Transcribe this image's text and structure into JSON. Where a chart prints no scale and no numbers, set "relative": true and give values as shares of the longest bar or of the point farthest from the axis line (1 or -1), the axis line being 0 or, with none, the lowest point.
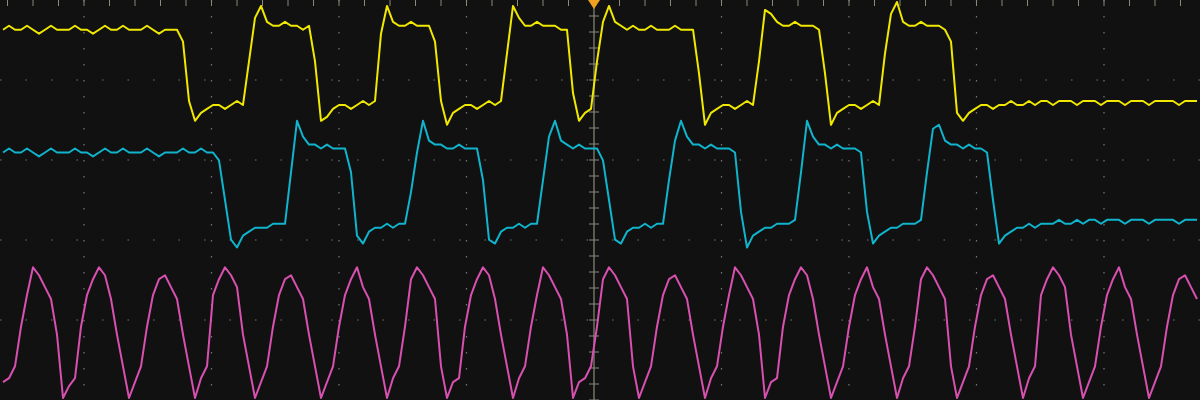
{
  "chart_data": {
    "type": "line",
    "relative": true,
    "grid": true,
    "tick_labels": false,
    "categories": [
      null,
      null,
      null,
      null,
      null,
      null,
      null,
      null,
      null,
      null,
      null,
      null,
      null,
      null,
      null,
      null,
      null,
      null,
      null,
      null,
      null,
      null,
      null,
      null,
      null,
      null,
      null,
      null,
      null,
      null,
      null,
      null,
      null,
      null,
      null,
      null,
      null,
      null,
      null,
      null,
      null,
      null,
      null,
      null,
      null,
      null,
      null,
      null,
      null,
      null,
      null,
      null,
      null,
      null,
      null,
      null,
      null,
      null,
      null,
      null,
      null,
      null,
      null,
      null,
      null,
      null,
      null,
      null,
      null,
      null,
      null,
      null,
      null,
      null,
      null,
      null,
      null,
      null,
      null,
      null,
      null,
      null,
      null,
      null,
      null,
      null,
      null,
      null,
      null,
      null,
      null,
      null,
      null,
      null,
      null,
      null,
      null,
      null,
      null,
      null,
      null,
      null,
      null,
      null,
      null,
      null,
      null,
      null,
      null,
      null,
      null,
      null,
      null,
      null,
      null,
      null,
      null,
      null,
      null,
      null,
      null,
      null,
      null,
      null,
      null,
      null,
      null,
      null,
      null,
      null,
      null,
      null,
      null,
      null,
      null,
      null,
      null,
      null,
      null,
      null,
      null,
      null,
      null,
      null,
      null,
      null,
      null,
      null,
      null,
      null,
      null,
      null,
      null,
      null,
      null,
      null,
      null,
      null,
      null,
      null,
      null,
      null,
      null,
      null,
      null,
      null,
      null,
      null,
      null,
      null,
      null,
      null,
      null,
      null,
      null,
      null,
      null,
      null,
      null,
      null,
      null,
      null,
      null,
      null,
      null,
      null,
      null,
      null,
      null,
      null,
      null,
      null,
      null,
      null,
      null,
      null,
      null,
      null,
      null,
      null
    ],
    "series": [
      {
        "color": "#f0e800",
        "values": [
          0.93,
          0.94,
          0.93,
          0.93,
          0.94,
          0.93,
          0.92,
          0.93,
          0.94,
          0.93,
          0.93,
          0.93,
          0.94,
          0.93,
          0.93,
          0.92,
          0.93,
          0.94,
          0.93,
          0.93,
          0.94,
          0.93,
          0.93,
          0.93,
          0.94,
          0.93,
          0.92,
          0.93,
          0.93,
          0.93,
          0.9,
          0.75,
          0.7,
          0.72,
          0.73,
          0.74,
          0.74,
          0.73,
          0.74,
          0.75,
          0.74,
          0.85,
          0.96,
          0.99,
          0.95,
          0.94,
          0.94,
          0.95,
          0.94,
          0.94,
          0.93,
          0.94,
          0.85,
          0.7,
          0.71,
          0.73,
          0.74,
          0.74,
          0.73,
          0.74,
          0.75,
          0.74,
          0.75,
          0.92,
          0.99,
          0.95,
          0.94,
          0.94,
          0.95,
          0.94,
          0.94,
          0.94,
          0.9,
          0.75,
          0.69,
          0.72,
          0.73,
          0.74,
          0.74,
          0.73,
          0.74,
          0.75,
          0.74,
          0.75,
          0.87,
          0.99,
          0.96,
          0.94,
          0.94,
          0.95,
          0.94,
          0.94,
          0.94,
          0.93,
          0.93,
          0.77,
          0.7,
          0.72,
          0.73,
          0.85,
          0.95,
          0.99,
          0.95,
          0.94,
          0.93,
          0.94,
          0.93,
          0.93,
          0.94,
          0.93,
          0.93,
          0.93,
          0.94,
          0.93,
          0.93,
          0.93,
          0.82,
          0.69,
          0.72,
          0.73,
          0.74,
          0.74,
          0.73,
          0.74,
          0.75,
          0.74,
          0.85,
          0.98,
          0.97,
          0.95,
          0.94,
          0.94,
          0.95,
          0.94,
          0.94,
          0.94,
          0.93,
          0.82,
          0.69,
          0.72,
          0.73,
          0.74,
          0.74,
          0.73,
          0.74,
          0.75,
          0.74,
          0.87,
          0.97,
          1.0,
          0.95,
          0.94,
          0.94,
          0.95,
          0.94,
          0.94,
          0.94,
          0.93,
          0.9,
          0.72,
          0.7,
          0.72,
          0.73,
          0.74,
          0.74,
          0.73,
          0.74,
          0.74,
          0.75,
          0.74,
          0.74,
          0.75,
          0.74,
          0.75,
          0.75,
          0.74,
          0.75,
          0.75,
          0.75,
          0.74,
          0.75,
          0.75,
          0.75,
          0.74,
          0.75,
          0.75,
          0.75,
          0.74,
          0.75,
          0.75,
          0.75,
          0.74,
          0.75,
          0.75,
          0.75,
          0.75,
          0.74,
          0.75,
          0.75,
          0.75
        ]
      },
      {
        "color": "#10b4cc",
        "values": [
          0.62,
          0.63,
          0.62,
          0.62,
          0.63,
          0.62,
          0.61,
          0.62,
          0.63,
          0.62,
          0.62,
          0.62,
          0.63,
          0.62,
          0.62,
          0.61,
          0.62,
          0.63,
          0.62,
          0.62,
          0.63,
          0.62,
          0.62,
          0.62,
          0.63,
          0.62,
          0.61,
          0.62,
          0.62,
          0.62,
          0.63,
          0.62,
          0.62,
          0.63,
          0.62,
          0.62,
          0.6,
          0.5,
          0.4,
          0.38,
          0.41,
          0.42,
          0.43,
          0.43,
          0.43,
          0.44,
          0.44,
          0.44,
          0.57,
          0.7,
          0.66,
          0.64,
          0.64,
          0.63,
          0.64,
          0.63,
          0.63,
          0.63,
          0.57,
          0.41,
          0.39,
          0.42,
          0.43,
          0.43,
          0.44,
          0.43,
          0.44,
          0.44,
          0.52,
          0.62,
          0.7,
          0.65,
          0.64,
          0.64,
          0.63,
          0.63,
          0.64,
          0.63,
          0.63,
          0.63,
          0.55,
          0.4,
          0.39,
          0.42,
          0.43,
          0.43,
          0.44,
          0.43,
          0.44,
          0.44,
          0.55,
          0.66,
          0.7,
          0.65,
          0.64,
          0.63,
          0.64,
          0.63,
          0.63,
          0.63,
          0.6,
          0.5,
          0.4,
          0.39,
          0.42,
          0.43,
          0.43,
          0.44,
          0.43,
          0.44,
          0.44,
          0.55,
          0.65,
          0.7,
          0.66,
          0.64,
          0.64,
          0.63,
          0.64,
          0.63,
          0.63,
          0.63,
          0.62,
          0.47,
          0.38,
          0.41,
          0.42,
          0.43,
          0.43,
          0.44,
          0.44,
          0.44,
          0.45,
          0.57,
          0.7,
          0.66,
          0.64,
          0.64,
          0.63,
          0.64,
          0.63,
          0.63,
          0.63,
          0.62,
          0.47,
          0.39,
          0.41,
          0.42,
          0.43,
          0.43,
          0.44,
          0.44,
          0.44,
          0.45,
          0.57,
          0.68,
          0.69,
          0.65,
          0.64,
          0.64,
          0.63,
          0.64,
          0.63,
          0.63,
          0.62,
          0.5,
          0.39,
          0.41,
          0.42,
          0.43,
          0.43,
          0.44,
          0.43,
          0.44,
          0.44,
          0.44,
          0.45,
          0.44,
          0.44,
          0.45,
          0.44,
          0.45,
          0.45,
          0.44,
          0.45,
          0.45,
          0.45,
          0.44,
          0.45,
          0.45,
          0.45,
          0.44,
          0.45,
          0.45,
          0.45,
          0.45,
          0.44,
          0.45,
          0.45,
          0.45
        ]
      },
      {
        "color": "#d850b0",
        "values": [
          0.04,
          0.05,
          0.08,
          0.18,
          0.26,
          0.33,
          0.31,
          0.28,
          0.25,
          0.16,
          0.0,
          0.03,
          0.05,
          0.18,
          0.26,
          0.3,
          0.33,
          0.31,
          0.25,
          0.16,
          0.08,
          0.0,
          0.04,
          0.08,
          0.18,
          0.26,
          0.3,
          0.31,
          0.28,
          0.25,
          0.16,
          0.08,
          0.0,
          0.05,
          0.08,
          0.26,
          0.3,
          0.33,
          0.31,
          0.28,
          0.16,
          0.08,
          0.0,
          0.04,
          0.08,
          0.18,
          0.26,
          0.3,
          0.31,
          0.28,
          0.25,
          0.16,
          0.08,
          0.0,
          0.04,
          0.08,
          0.18,
          0.26,
          0.3,
          0.33,
          0.28,
          0.25,
          0.16,
          0.08,
          0.0,
          0.05,
          0.08,
          0.18,
          0.3,
          0.33,
          0.31,
          0.28,
          0.25,
          0.08,
          0.0,
          0.04,
          0.05,
          0.18,
          0.26,
          0.3,
          0.33,
          0.31,
          0.25,
          0.16,
          0.08,
          0.0,
          0.05,
          0.08,
          0.18,
          0.26,
          0.33,
          0.31,
          0.28,
          0.25,
          0.16,
          0.0,
          0.04,
          0.05,
          0.08,
          0.18,
          0.3,
          0.33,
          0.31,
          0.28,
          0.25,
          0.08,
          0.0,
          0.04,
          0.08,
          0.18,
          0.26,
          0.3,
          0.31,
          0.28,
          0.25,
          0.16,
          0.08,
          0.0,
          0.05,
          0.08,
          0.18,
          0.26,
          0.33,
          0.31,
          0.28,
          0.25,
          0.16,
          0.0,
          0.04,
          0.05,
          0.18,
          0.26,
          0.3,
          0.33,
          0.31,
          0.25,
          0.16,
          0.08,
          0.0,
          0.04,
          0.08,
          0.18,
          0.26,
          0.3,
          0.33,
          0.28,
          0.25,
          0.16,
          0.08,
          0.0,
          0.05,
          0.08,
          0.18,
          0.3,
          0.33,
          0.31,
          0.28,
          0.25,
          0.08,
          0.0,
          0.04,
          0.08,
          0.18,
          0.26,
          0.3,
          0.31,
          0.28,
          0.25,
          0.16,
          0.08,
          0.0,
          0.05,
          0.08,
          0.26,
          0.3,
          0.33,
          0.31,
          0.28,
          0.16,
          0.08,
          0.0,
          0.04,
          0.08,
          0.18,
          0.26,
          0.3,
          0.33,
          0.28,
          0.25,
          0.16,
          0.08,
          0.0,
          0.04,
          0.08,
          0.18,
          0.26,
          0.3,
          0.31,
          0.28,
          0.25
        ]
      }
    ]
  }
}
